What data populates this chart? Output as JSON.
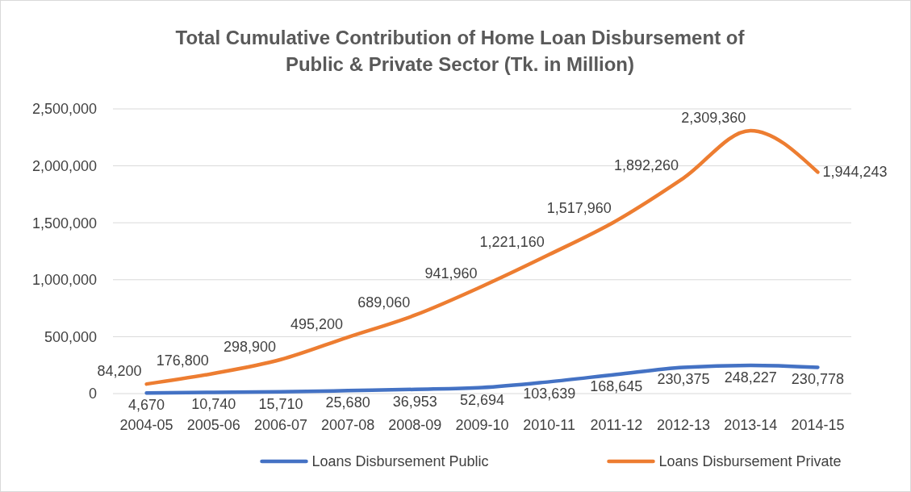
{
  "chart_data": {
    "type": "line",
    "title": "Total Cumulative Contribution of Home Loan Disbursement of Public & Private Sector  (Tk. in Million)",
    "categories": [
      "2004-05",
      "2005-06",
      "2006-07",
      "2007-08",
      "2008-09",
      "2009-10",
      "2010-11",
      "2011-12",
      "2012-13",
      "2013-14",
      "2014-15"
    ],
    "series": [
      {
        "name": "Loans Disbursement Public",
        "color": "#4472c4",
        "values": [
          4670,
          10740,
          15710,
          25680,
          36953,
          52694,
          103639,
          168645,
          230375,
          248227,
          230778
        ],
        "value_labels": [
          "4,670",
          "10,740",
          "15,710",
          "25,680",
          "36,953",
          "52,694",
          "103,639",
          "168,645",
          "230,375",
          "248,227",
          "230,778"
        ]
      },
      {
        "name": "Loans Disbursement Private",
        "color": "#ed7d31",
        "values": [
          84200,
          176800,
          298900,
          495200,
          689060,
          941960,
          1221160,
          1517960,
          1892260,
          2309360,
          1944243
        ],
        "value_labels": [
          "84,200",
          "176,800",
          "298,900",
          "495,200",
          "689,060",
          "941,960",
          "1,221,160",
          "1,517,960",
          "1,892,260",
          "2,309,360",
          "1,944,243"
        ]
      }
    ],
    "ylim": [
      0,
      2500000
    ],
    "yticks": [
      {
        "value": 0,
        "label": "0"
      },
      {
        "value": 500000,
        "label": "500,000"
      },
      {
        "value": 1000000,
        "label": "1,000,000"
      },
      {
        "value": 1500000,
        "label": "1,500,000"
      },
      {
        "value": 2000000,
        "label": "2,000,000"
      },
      {
        "value": 2500000,
        "label": "2,500,000"
      }
    ],
    "grid": "y",
    "legend": "bottom",
    "marker": "none",
    "line_style": "solid"
  }
}
